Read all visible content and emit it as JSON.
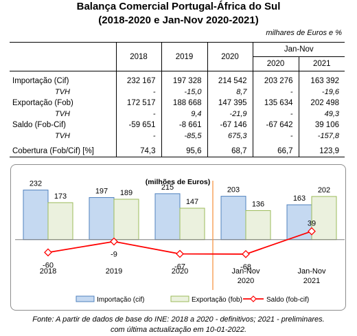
{
  "title": "Balança Comercial Portugal-África do Sul",
  "subtitle": "(2018-2020 e Jan-Nov 2020-2021)",
  "units": "milhares de Euros e %",
  "table": {
    "group_header": "Jan-Nov",
    "columns": [
      "2018",
      "2019",
      "2020",
      "2020",
      "2021"
    ],
    "rows": [
      {
        "label": "Importação (Cif)",
        "values": [
          "232 167",
          "197 328",
          "214 542",
          "203 276",
          "163 392"
        ],
        "tvh": false
      },
      {
        "label": "TVH",
        "values": [
          "-",
          "-15,0",
          "8,7",
          "-",
          "-19,6"
        ],
        "tvh": true
      },
      {
        "label": "Exportação (Fob)",
        "values": [
          "172 517",
          "188 668",
          "147 395",
          "135 634",
          "202 498"
        ],
        "tvh": false
      },
      {
        "label": "TVH",
        "values": [
          "-",
          "9,4",
          "-21,9",
          "-",
          "49,3"
        ],
        "tvh": true
      },
      {
        "label": "Saldo (Fob-Cif)",
        "values": [
          "-59 651",
          "-8 661",
          "-67 146",
          "-67 642",
          "39 106"
        ],
        "tvh": false
      },
      {
        "label": "TVH",
        "values": [
          "-",
          "-85,5",
          "675,3",
          "-",
          "-157,8"
        ],
        "tvh": true
      },
      {
        "label": "Cobertura (Fob/Cif) [%]",
        "values": [
          "74,3",
          "95,6",
          "68,7",
          "66,7",
          "123,9"
        ],
        "tvh": false
      }
    ]
  },
  "chart_data": {
    "type": "bar",
    "title": "(milhões de Euros)",
    "categories": [
      [
        "2018"
      ],
      [
        "2019"
      ],
      [
        "2020"
      ],
      [
        "Jan-Nov",
        "2020"
      ],
      [
        "Jan-Nov",
        "2021"
      ]
    ],
    "series": [
      {
        "name": "Importação (cif)",
        "type": "bar",
        "values": [
          232,
          197,
          215,
          203,
          163
        ],
        "color": "#c5d9f1",
        "stroke": "#4f81bd"
      },
      {
        "name": "Exportação (fob)",
        "type": "bar",
        "values": [
          173,
          189,
          147,
          136,
          202
        ],
        "color": "#ebf1de",
        "stroke": "#9bbb59"
      },
      {
        "name": "Saldo (fob-cif)",
        "type": "line",
        "values": [
          -60,
          -9,
          -67,
          -68,
          39
        ],
        "color": "#ff0000"
      }
    ],
    "ylim": [
      -75,
      250
    ],
    "divider_after_index": 2,
    "divider_color": "#f79646",
    "legend_position": "bottom"
  },
  "footer": {
    "line1": "Fonte: A partir de dados de base do INE: 2018 a 2020 - definitivos; 2021 - preliminares.",
    "line2": "com última actualização em 10-01-2022."
  }
}
